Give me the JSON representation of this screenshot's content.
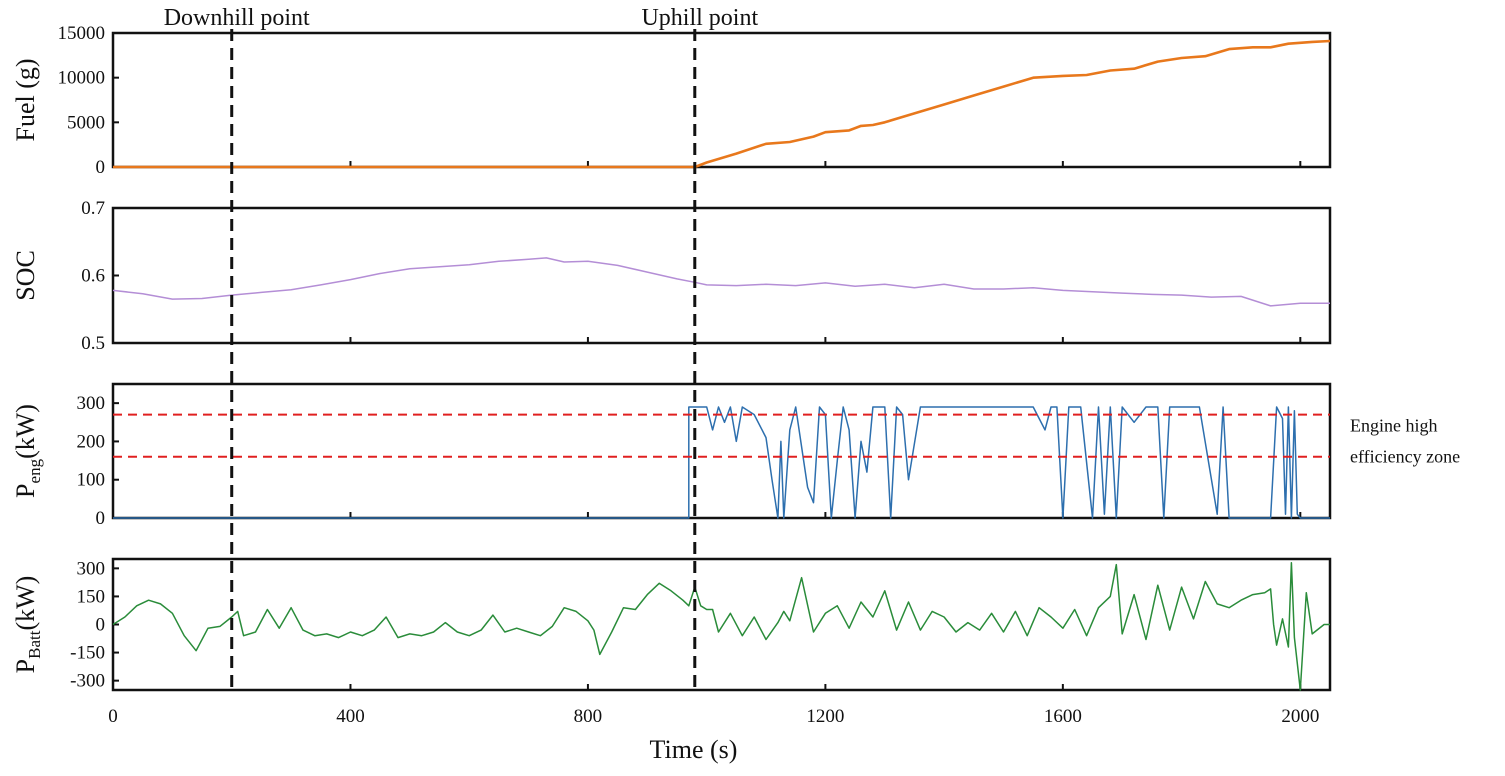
{
  "chart_data": {
    "type": "line",
    "xlabel": "Time (s)",
    "xlim": [
      0,
      2050
    ],
    "xticks": [
      0,
      400,
      800,
      1200,
      1600,
      2000
    ],
    "markers": [
      {
        "label": "Downhill point",
        "x": 200
      },
      {
        "label": "Uphill point",
        "x": 980
      }
    ],
    "panels": [
      {
        "id": "fuel",
        "ylabel": "Fuel (g)",
        "color": "#e8781c",
        "ylim": [
          0,
          15000
        ],
        "yticks": [
          0,
          5000,
          10000,
          15000
        ],
        "x": [
          0,
          980,
          1000,
          1050,
          1100,
          1140,
          1180,
          1200,
          1240,
          1260,
          1280,
          1300,
          1350,
          1400,
          1450,
          1500,
          1550,
          1600,
          1640,
          1680,
          1720,
          1760,
          1800,
          1840,
          1880,
          1920,
          1950,
          1980,
          2000,
          2020,
          2050
        ],
        "y": [
          0,
          0,
          500,
          1500,
          2600,
          2800,
          3400,
          3900,
          4100,
          4600,
          4700,
          5000,
          6000,
          7000,
          8000,
          9000,
          10000,
          10200,
          10300,
          10800,
          11000,
          11800,
          12200,
          12400,
          13200,
          13400,
          13400,
          13800,
          13900,
          14000,
          14100
        ]
      },
      {
        "id": "soc",
        "ylabel": "SOC",
        "color": "#b48ed6",
        "ylim": [
          0.5,
          0.7
        ],
        "yticks": [
          0.5,
          0.6,
          0.7
        ],
        "x": [
          0,
          50,
          100,
          150,
          200,
          250,
          300,
          350,
          400,
          450,
          500,
          550,
          600,
          650,
          700,
          730,
          760,
          800,
          850,
          900,
          950,
          980,
          1000,
          1050,
          1100,
          1150,
          1200,
          1250,
          1300,
          1350,
          1400,
          1450,
          1500,
          1550,
          1600,
          1650,
          1700,
          1750,
          1800,
          1850,
          1900,
          1950,
          2000,
          2050
        ],
        "y": [
          0.578,
          0.573,
          0.565,
          0.566,
          0.571,
          0.575,
          0.579,
          0.586,
          0.594,
          0.603,
          0.61,
          0.613,
          0.616,
          0.621,
          0.624,
          0.626,
          0.62,
          0.621,
          0.615,
          0.605,
          0.595,
          0.59,
          0.586,
          0.585,
          0.587,
          0.585,
          0.589,
          0.584,
          0.587,
          0.582,
          0.587,
          0.58,
          0.58,
          0.582,
          0.578,
          0.576,
          0.574,
          0.572,
          0.571,
          0.568,
          0.569,
          0.555,
          0.559,
          0.559
        ]
      },
      {
        "id": "peng",
        "ylabel": "P",
        "ylabel_sub": "eng",
        "ylabel_unit": "(kW)",
        "color": "#2d6fae",
        "ylim": [
          0,
          350
        ],
        "yticks": [
          0,
          100,
          200,
          300
        ],
        "threshold_lines": [
          270,
          160
        ],
        "threshold_color": "#e02020",
        "zone_label": [
          "Engine high",
          "efficiency zone"
        ],
        "x": [
          0,
          970,
          970,
          1000,
          1010,
          1020,
          1030,
          1040,
          1050,
          1060,
          1080,
          1100,
          1110,
          1120,
          1125,
          1130,
          1140,
          1150,
          1170,
          1180,
          1190,
          1200,
          1210,
          1220,
          1230,
          1240,
          1250,
          1260,
          1270,
          1280,
          1300,
          1310,
          1320,
          1330,
          1340,
          1360,
          1380,
          1400,
          1450,
          1500,
          1550,
          1570,
          1580,
          1590,
          1600,
          1610,
          1630,
          1650,
          1660,
          1670,
          1680,
          1690,
          1700,
          1720,
          1740,
          1760,
          1770,
          1780,
          1800,
          1830,
          1860,
          1870,
          1880,
          1890,
          1950,
          1960,
          1970,
          1975,
          1980,
          1985,
          1990,
          1995,
          2000,
          2050
        ],
        "y": [
          0,
          0,
          290,
          290,
          230,
          290,
          250,
          290,
          200,
          290,
          270,
          210,
          100,
          0,
          200,
          0,
          230,
          290,
          80,
          40,
          290,
          270,
          0,
          150,
          290,
          230,
          0,
          200,
          120,
          290,
          290,
          0,
          290,
          270,
          100,
          290,
          290,
          290,
          290,
          290,
          290,
          230,
          290,
          290,
          0,
          290,
          290,
          0,
          290,
          10,
          290,
          0,
          290,
          250,
          290,
          290,
          0,
          290,
          290,
          290,
          10,
          290,
          0,
          0,
          0,
          290,
          260,
          10,
          290,
          0,
          280,
          10,
          0,
          0
        ]
      },
      {
        "id": "pbatt",
        "ylabel": "P",
        "ylabel_sub": "Batt",
        "ylabel_unit": "(kW)",
        "color": "#2a8c3a",
        "ylim": [
          -350,
          350
        ],
        "yticks": [
          -300,
          -150,
          0,
          150,
          300
        ],
        "x": [
          0,
          20,
          40,
          60,
          80,
          100,
          120,
          140,
          160,
          180,
          200,
          210,
          220,
          240,
          260,
          280,
          300,
          320,
          340,
          360,
          380,
          400,
          420,
          440,
          460,
          480,
          500,
          520,
          540,
          560,
          580,
          600,
          620,
          640,
          660,
          680,
          700,
          720,
          740,
          760,
          780,
          800,
          810,
          820,
          840,
          860,
          880,
          900,
          920,
          940,
          960,
          970,
          980,
          990,
          1000,
          1010,
          1020,
          1040,
          1060,
          1080,
          1100,
          1120,
          1130,
          1140,
          1160,
          1180,
          1200,
          1220,
          1240,
          1260,
          1280,
          1300,
          1320,
          1340,
          1360,
          1380,
          1400,
          1420,
          1440,
          1460,
          1480,
          1500,
          1520,
          1540,
          1560,
          1580,
          1600,
          1620,
          1640,
          1660,
          1680,
          1690,
          1700,
          1720,
          1740,
          1760,
          1780,
          1800,
          1820,
          1840,
          1860,
          1880,
          1900,
          1920,
          1940,
          1950,
          1955,
          1960,
          1970,
          1980,
          1985,
          1990,
          2000,
          2010,
          2020,
          2040,
          2050
        ],
        "y": [
          0,
          40,
          100,
          130,
          110,
          60,
          -60,
          -140,
          -20,
          -10,
          40,
          70,
          -60,
          -40,
          80,
          -20,
          90,
          -30,
          -60,
          -50,
          -70,
          -40,
          -60,
          -30,
          40,
          -70,
          -50,
          -60,
          -40,
          10,
          -40,
          -60,
          -30,
          50,
          -40,
          -20,
          -40,
          -60,
          -10,
          90,
          70,
          20,
          -30,
          -160,
          -40,
          90,
          80,
          160,
          220,
          180,
          130,
          100,
          200,
          100,
          80,
          80,
          -40,
          60,
          -60,
          40,
          -80,
          10,
          70,
          20,
          250,
          -40,
          60,
          100,
          -20,
          120,
          40,
          180,
          -30,
          120,
          -30,
          70,
          40,
          -40,
          10,
          -30,
          60,
          -40,
          70,
          -60,
          90,
          40,
          -20,
          80,
          -60,
          90,
          150,
          320,
          -50,
          160,
          -80,
          210,
          -30,
          200,
          30,
          230,
          110,
          90,
          130,
          160,
          170,
          190,
          0,
          -110,
          30,
          -120,
          330,
          -70,
          -350,
          170,
          -50,
          0,
          0
        ]
      }
    ]
  }
}
